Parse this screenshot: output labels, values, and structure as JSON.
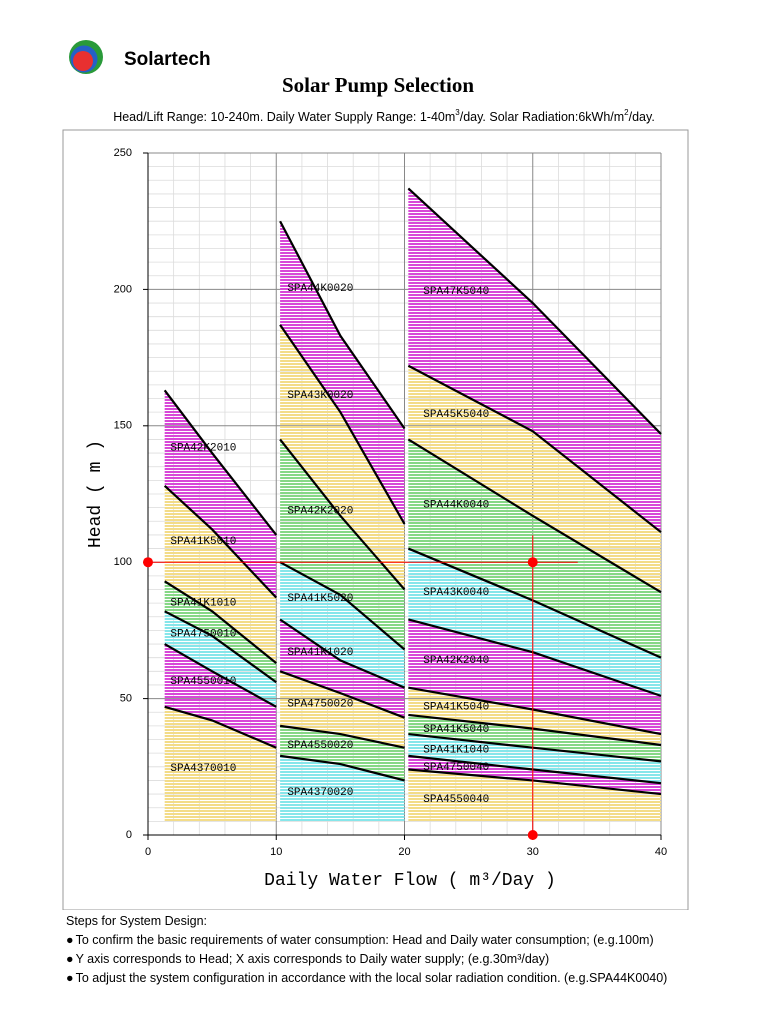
{
  "header": {
    "brand": "Solartech"
  },
  "chart_data": {
    "type": "band-area",
    "title": "Solar Pump Selection",
    "subtitle": [
      "Head/Lift Range: 10-240m.   Daily Water Supply Range: 1-40m",
      "3",
      "/day.   Solar Radiation:6kWh/m",
      "2",
      "/day."
    ],
    "xlabel": "Daily Water Flow ( m³/Day )",
    "ylabel": "Head ( m )",
    "xlim": [
      0,
      40
    ],
    "xticks": [
      0,
      10,
      20,
      30,
      40
    ],
    "ylim": [
      0,
      250
    ],
    "yticks": [
      0,
      50,
      100,
      150,
      200,
      250
    ],
    "grid": true,
    "series": [
      {
        "name": "SPA42K2010",
        "color": "#d848d8",
        "x": [
          1.3,
          5,
          10
        ],
        "upper": [
          163,
          140,
          110
        ],
        "lower": [
          128,
          112,
          87
        ]
      },
      {
        "name": "SPA41K5010",
        "color": "#f3dc88",
        "x": [
          1.3,
          5,
          10
        ],
        "upper": [
          128,
          112,
          87
        ],
        "lower": [
          93,
          82,
          63
        ]
      },
      {
        "name": "SPA41K1010",
        "color": "#86d886",
        "x": [
          1.3,
          5,
          10
        ],
        "upper": [
          93,
          82,
          63
        ],
        "lower": [
          82,
          73,
          56
        ]
      },
      {
        "name": "SPA4750010",
        "color": "#86e6ea",
        "x": [
          1.3,
          5,
          10
        ],
        "upper": [
          82,
          73,
          56
        ],
        "lower": [
          70,
          60,
          47
        ]
      },
      {
        "name": "SPA4550010",
        "color": "#d848d8",
        "x": [
          1.3,
          5,
          10
        ],
        "upper": [
          70,
          60,
          47
        ],
        "lower": [
          47,
          42,
          32
        ]
      },
      {
        "name": "SPA4370010",
        "color": "#f3dc88",
        "x": [
          1.3,
          5,
          10
        ],
        "upper": [
          47,
          42,
          32
        ],
        "lower": [
          5,
          5,
          5
        ]
      },
      {
        "name": "SPA44K0020",
        "color": "#d848d8",
        "x": [
          10.3,
          15,
          20
        ],
        "upper": [
          225,
          183,
          149
        ],
        "lower": [
          187,
          155,
          114
        ]
      },
      {
        "name": "SPA43K0020",
        "color": "#f3dc88",
        "x": [
          10.3,
          15,
          20
        ],
        "upper": [
          187,
          155,
          114
        ],
        "lower": [
          145,
          117,
          90
        ]
      },
      {
        "name": "SPA42K2020",
        "color": "#86d886",
        "x": [
          10.3,
          15,
          20
        ],
        "upper": [
          145,
          117,
          90
        ],
        "lower": [
          100,
          88,
          68
        ]
      },
      {
        "name": "SPA41K5020",
        "color": "#86e6ea",
        "x": [
          10.3,
          15,
          20
        ],
        "upper": [
          100,
          88,
          68
        ],
        "lower": [
          79,
          64,
          54
        ]
      },
      {
        "name": "SPA41K1020",
        "color": "#d848d8",
        "x": [
          10.3,
          15,
          20
        ],
        "upper": [
          79,
          64,
          54
        ],
        "lower": [
          60,
          52,
          43
        ]
      },
      {
        "name": "SPA4750020",
        "color": "#f3dc88",
        "x": [
          10.3,
          15,
          20
        ],
        "upper": [
          60,
          52,
          43
        ],
        "lower": [
          40,
          37,
          32
        ]
      },
      {
        "name": "SPA4550020",
        "color": "#86d886",
        "x": [
          10.3,
          15,
          20
        ],
        "upper": [
          40,
          37,
          32
        ],
        "lower": [
          29,
          26,
          20
        ]
      },
      {
        "name": "SPA4370020",
        "color": "#86e6ea",
        "x": [
          10.3,
          15,
          20
        ],
        "upper": [
          29,
          26,
          20
        ],
        "lower": [
          5,
          5,
          5
        ]
      },
      {
        "name": "SPA47K5040",
        "color": "#d848d8",
        "x": [
          20.3,
          30,
          40
        ],
        "upper": [
          237,
          195,
          147
        ],
        "lower": [
          172,
          148,
          111
        ]
      },
      {
        "name": "SPA45K5040",
        "color": "#f3dc88",
        "x": [
          20.3,
          30,
          40
        ],
        "upper": [
          172,
          148,
          111
        ],
        "lower": [
          145,
          117,
          89
        ]
      },
      {
        "name": "SPA44K0040",
        "color": "#86d886",
        "x": [
          20.3,
          30,
          40
        ],
        "upper": [
          145,
          117,
          89
        ],
        "lower": [
          105,
          86,
          65
        ]
      },
      {
        "name": "SPA43K0040",
        "color": "#86e6ea",
        "x": [
          20.3,
          30,
          40
        ],
        "upper": [
          105,
          86,
          65
        ],
        "lower": [
          79,
          67,
          51
        ]
      },
      {
        "name": "SPA42K2040",
        "color": "#d848d8",
        "x": [
          20.3,
          30,
          40
        ],
        "upper": [
          79,
          67,
          51
        ],
        "lower": [
          54,
          46,
          37
        ]
      },
      {
        "name": "SPA41K5040",
        "color": "#f3dc88",
        "x": [
          20.3,
          30,
          40
        ],
        "upper": [
          54,
          46,
          37
        ],
        "lower": [
          44,
          39,
          33
        ]
      },
      {
        "name": "SPA41K5040",
        "color": "#86d886",
        "x": [
          20.3,
          30,
          40
        ],
        "upper": [
          44,
          39,
          33
        ],
        "lower": [
          37,
          32,
          27
        ]
      },
      {
        "name": "SPA41K1040",
        "color": "#86e6ea",
        "x": [
          20.3,
          30,
          40
        ],
        "upper": [
          37,
          32,
          27
        ],
        "lower": [
          29,
          24,
          19
        ]
      },
      {
        "name": "SPA4750040",
        "color": "#d848d8",
        "x": [
          20.3,
          30,
          40
        ],
        "upper": [
          29,
          24,
          19
        ],
        "lower": [
          24,
          20,
          15
        ]
      },
      {
        "name": "SPA4550040",
        "color": "#f3dc88",
        "x": [
          20.3,
          30,
          40
        ],
        "upper": [
          24,
          20,
          15
        ],
        "lower": [
          5,
          5,
          5
        ]
      }
    ],
    "example": {
      "x": 30,
      "y": 100,
      "color": "#ff0000"
    }
  },
  "steps": {
    "heading": "Steps for System Design:",
    "items": [
      "To confirm the basic requirements of water consumption: Head and Daily water consumption; (e.g.100m)",
      "Y axis corresponds to Head; X axis corresponds to Daily water supply; (e.g.30m³/day)",
      "To adjust the system configuration in accordance with the local solar radiation condition. (e.g.SPA44K0040)"
    ]
  }
}
